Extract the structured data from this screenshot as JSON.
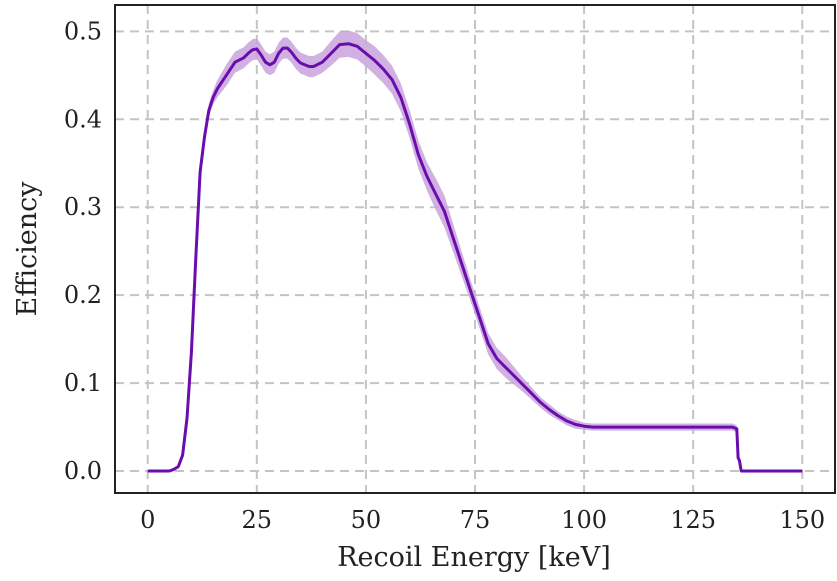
{
  "chart_data": {
    "type": "line",
    "title": "",
    "xlabel": "Recoil Energy [keV]",
    "ylabel": "Efficiency",
    "xlim": [
      -7.5,
      157.5
    ],
    "ylim": [
      -0.025,
      0.53
    ],
    "xticks": [
      0,
      25,
      50,
      75,
      100,
      125,
      150
    ],
    "xtick_labels": [
      "0",
      "25",
      "50",
      "75",
      "100",
      "125",
      "150"
    ],
    "yticks": [
      0.0,
      0.1,
      0.2,
      0.3,
      0.4,
      0.5
    ],
    "ytick_labels": [
      "0.0",
      "0.1",
      "0.2",
      "0.3",
      "0.4",
      "0.5"
    ],
    "grid": true,
    "colors": {
      "line": "#6a0dad",
      "band": "#c9a3dd",
      "grid": "#c4c4c4",
      "frame": "#222222"
    },
    "series": [
      {
        "x": [
          0,
          5,
          6,
          7,
          8,
          9,
          10,
          11,
          12,
          13,
          14,
          15,
          16,
          18,
          20,
          22,
          23,
          24,
          25,
          26,
          27,
          28,
          29,
          30,
          31,
          32,
          33,
          34,
          35,
          36,
          37,
          38,
          40,
          42,
          44,
          46,
          48,
          50,
          52,
          54,
          56,
          58,
          60,
          62,
          64,
          66,
          68,
          70,
          72,
          74,
          76,
          78,
          80,
          82,
          84,
          86,
          88,
          90,
          92,
          94,
          96,
          98,
          100,
          102,
          105,
          110,
          120,
          130,
          134,
          135,
          135.3,
          135.6,
          136,
          150
        ],
        "y": [
          0.0,
          0.0,
          0.002,
          0.005,
          0.018,
          0.06,
          0.135,
          0.24,
          0.34,
          0.38,
          0.41,
          0.425,
          0.435,
          0.45,
          0.465,
          0.47,
          0.475,
          0.479,
          0.48,
          0.473,
          0.465,
          0.462,
          0.465,
          0.475,
          0.481,
          0.481,
          0.476,
          0.469,
          0.464,
          0.462,
          0.46,
          0.46,
          0.465,
          0.475,
          0.485,
          0.486,
          0.483,
          0.475,
          0.467,
          0.457,
          0.445,
          0.425,
          0.395,
          0.36,
          0.335,
          0.315,
          0.295,
          0.265,
          0.235,
          0.205,
          0.175,
          0.145,
          0.128,
          0.118,
          0.108,
          0.098,
          0.088,
          0.078,
          0.07,
          0.063,
          0.057,
          0.053,
          0.051,
          0.05,
          0.05,
          0.05,
          0.05,
          0.05,
          0.05,
          0.048,
          0.015,
          0.012,
          0.0,
          0.0
        ],
        "band_halfwidth": [
          0,
          0,
          0,
          0,
          0.002,
          0.004,
          0.006,
          0.008,
          0.008,
          0.008,
          0.008,
          0.008,
          0.01,
          0.012,
          0.012,
          0.012,
          0.012,
          0.012,
          0.012,
          0.012,
          0.012,
          0.012,
          0.012,
          0.012,
          0.012,
          0.012,
          0.012,
          0.012,
          0.012,
          0.012,
          0.012,
          0.012,
          0.012,
          0.014,
          0.015,
          0.015,
          0.015,
          0.015,
          0.016,
          0.016,
          0.016,
          0.016,
          0.016,
          0.016,
          0.016,
          0.018,
          0.018,
          0.016,
          0.014,
          0.012,
          0.012,
          0.012,
          0.012,
          0.012,
          0.01,
          0.008,
          0.007,
          0.006,
          0.006,
          0.005,
          0.005,
          0.005,
          0.004,
          0.004,
          0.004,
          0.004,
          0.004,
          0.004,
          0.004,
          0.004,
          0.003,
          0.002,
          0,
          0
        ]
      }
    ]
  }
}
